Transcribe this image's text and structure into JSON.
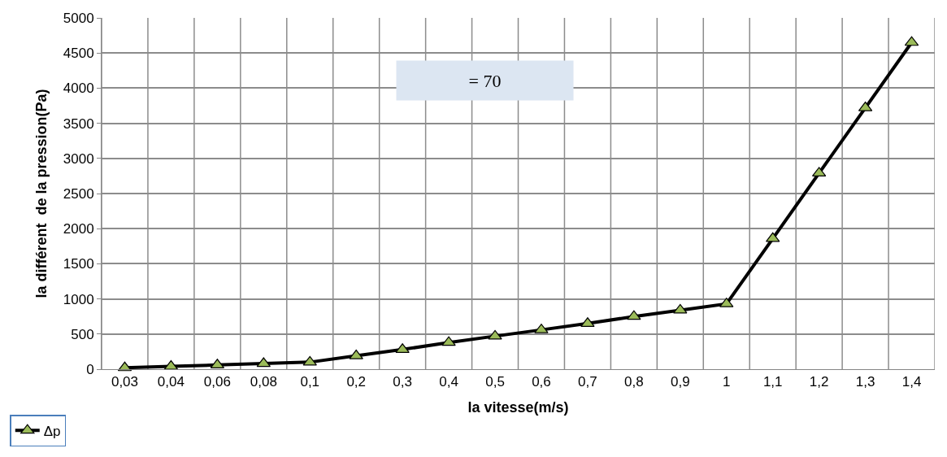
{
  "chart_data": {
    "type": "line",
    "xlabel": "la vitesse(m/s)",
    "ylabel": "la différent  de la pression(Pa)",
    "categories": [
      "0,03",
      "0,04",
      "0,06",
      "0,08",
      "0,1",
      "0,2",
      "0,3",
      "0,4",
      "0,5",
      "0,6",
      "0,7",
      "0,8",
      "0,9",
      "1",
      "1,1",
      "1,2",
      "1,3",
      "1,4"
    ],
    "series": [
      {
        "name": "Δp",
        "color": "#000000",
        "values": [
          20,
          40,
          60,
          80,
          100,
          190,
          280,
          380,
          470,
          560,
          650,
          750,
          840,
          930,
          1860,
          2790,
          3720,
          4650
        ]
      }
    ],
    "ylim": [
      0,
      5000
    ],
    "yticks": [
      0,
      500,
      1000,
      1500,
      2000,
      2500,
      3000,
      3500,
      4000,
      4500,
      5000
    ],
    "annotations": [
      "= 70"
    ],
    "grid": true,
    "legend": "bottom left",
    "marker": "triangle",
    "line_style": "solid"
  }
}
